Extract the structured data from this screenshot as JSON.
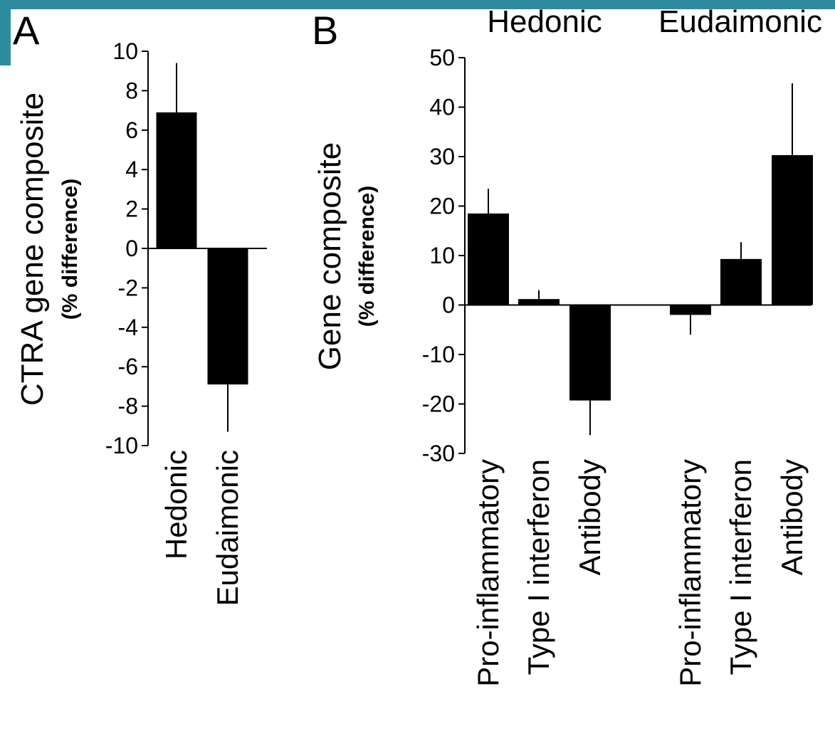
{
  "colors": {
    "bar": "#000000",
    "axis": "#000000",
    "frame_accent": "#2f8c9e",
    "background": "#ffffff"
  },
  "chart_data": [
    {
      "type": "bar",
      "panel_label": "A",
      "ylabel": "CTRA gene composite",
      "ylabel_sub": "(% difference)",
      "ylim": [
        -10,
        10
      ],
      "yticks": [
        10,
        8,
        6,
        4,
        2,
        0,
        -2,
        -4,
        -6,
        -8,
        -10
      ],
      "categories": [
        "Hedonic",
        "Eudaimonic"
      ],
      "values": [
        6.9,
        -6.9
      ],
      "error": [
        2.5,
        2.4
      ],
      "grid": false
    },
    {
      "type": "bar",
      "panel_label": "B",
      "ylabel": "Gene composite",
      "ylabel_sub": "(% difference)",
      "ylim": [
        -30,
        50
      ],
      "yticks": [
        50,
        40,
        30,
        20,
        10,
        0,
        -10,
        -20,
        -30
      ],
      "groups": [
        "Hedonic",
        "Eudaimonic"
      ],
      "categories": [
        "Pro-inflammatory",
        "Type I interferon",
        "Antibody",
        "Pro-inflammatory",
        "Type I interferon",
        "Antibody"
      ],
      "values": [
        18.5,
        1.2,
        -19.3,
        -2.0,
        9.3,
        30.3
      ],
      "error": [
        5.0,
        1.8,
        7.0,
        4.0,
        3.4,
        14.5
      ],
      "grid": false
    }
  ]
}
